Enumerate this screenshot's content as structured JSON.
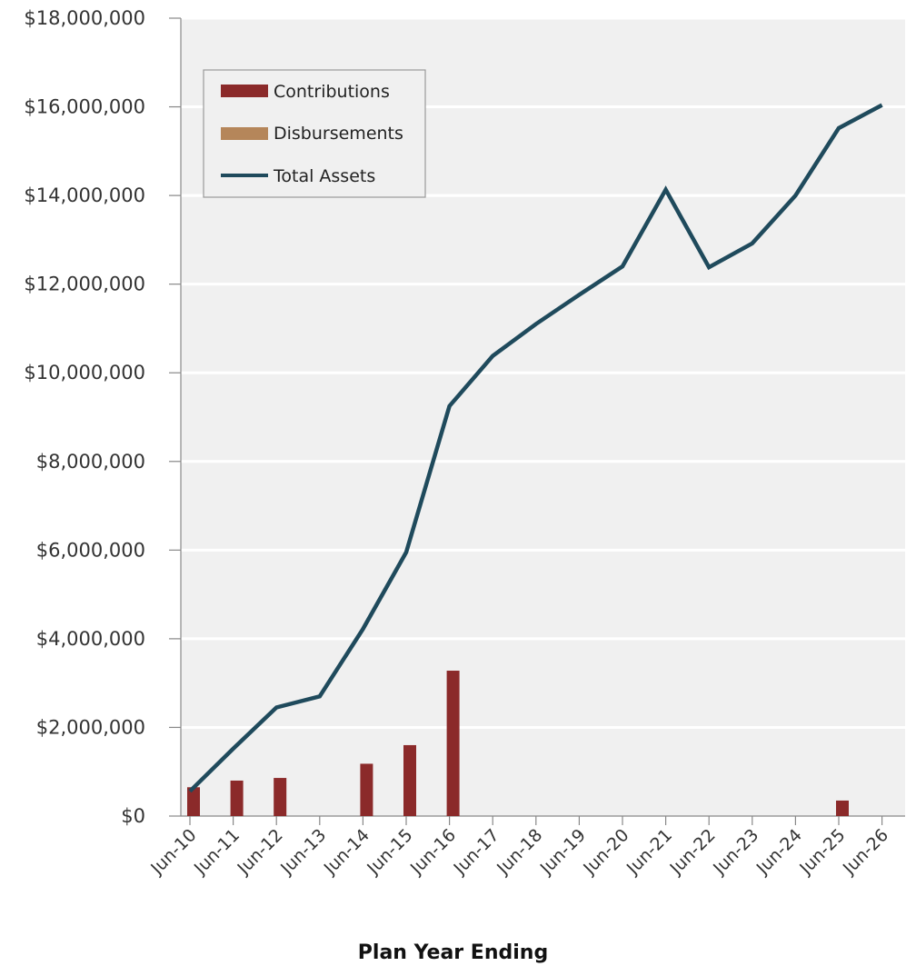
{
  "chart_data": {
    "type": "bar+line",
    "title": "",
    "xlabel": "Plan Year Ending",
    "ylabel": "",
    "categories": [
      "Jun-10",
      "Jun-11",
      "Jun-12",
      "Jun-13",
      "Jun-14",
      "Jun-15",
      "Jun-16",
      "Jun-17",
      "Jun-18",
      "Jun-19",
      "Jun-20",
      "Jun-21",
      "Jun-22",
      "Jun-23",
      "Jun-24",
      "Jun-25",
      "Jun-26"
    ],
    "ylim": [
      0,
      18000000
    ],
    "yticks": [
      0,
      2000000,
      4000000,
      6000000,
      8000000,
      10000000,
      12000000,
      14000000,
      16000000,
      18000000
    ],
    "ytick_labels": [
      "$0",
      "$2,000,000",
      "$4,000,000",
      "$6,000,000",
      "$8,000,000",
      "$10,000,000",
      "$12,000,000",
      "$14,000,000",
      "$16,000,000",
      "$18,000,000"
    ],
    "grid": true,
    "legend_position": "top-left",
    "series": [
      {
        "name": "Contributions",
        "kind": "bar",
        "color": "#8B2A2A",
        "values": [
          650000,
          800000,
          860000,
          0,
          1180000,
          1600000,
          3280000,
          0,
          0,
          0,
          0,
          0,
          0,
          0,
          0,
          350000,
          0
        ]
      },
      {
        "name": "Disbursements",
        "kind": "bar",
        "color": "#B5865A",
        "values": [
          0,
          0,
          0,
          0,
          0,
          0,
          0,
          0,
          0,
          0,
          0,
          0,
          0,
          0,
          0,
          0,
          0
        ]
      },
      {
        "name": "Total Assets",
        "kind": "line",
        "color": "#1F4A5C",
        "values": [
          560000,
          1520000,
          2450000,
          2700000,
          4220000,
          5950000,
          9250000,
          10380000,
          11100000,
          11760000,
          12400000,
          14130000,
          12380000,
          12920000,
          14000000,
          15520000,
          16040000
        ]
      }
    ]
  }
}
